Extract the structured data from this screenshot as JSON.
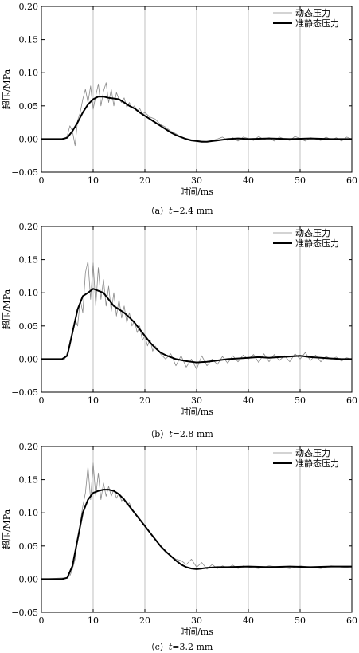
{
  "chart_data": [
    {
      "type": "line",
      "caption_prefix": "（a）",
      "caption_var": "t",
      "caption_value": "=2.4 mm",
      "xlabel": "时间/ms",
      "ylabel": "超压/MPa",
      "xlim": [
        0,
        60
      ],
      "ylim": [
        -0.05,
        0.2
      ],
      "xticks": [
        "0",
        "10",
        "20",
        "30",
        "40",
        "50",
        "60"
      ],
      "yticks": [
        "−0.05",
        "0.00",
        "0.05",
        "0.10",
        "0.15",
        "0.20"
      ],
      "grid": "vertical",
      "legend_position": "top-right",
      "series": [
        {
          "name": "动态压力",
          "x": [
            0,
            4.5,
            5,
            5.5,
            6,
            6.5,
            7,
            7.5,
            8,
            8.5,
            9,
            9.5,
            10,
            10.5,
            11,
            11.5,
            12,
            12.5,
            13,
            13.5,
            14,
            14.5,
            15,
            15.5,
            16,
            16.5,
            17,
            17.5,
            18,
            18.5,
            19,
            19.5,
            20,
            21,
            22,
            23,
            24,
            25,
            26,
            27,
            28,
            29,
            30,
            31,
            32,
            33,
            34,
            35,
            36,
            37,
            38,
            39,
            40,
            41,
            42,
            43,
            44,
            45,
            46,
            47,
            48,
            49,
            50,
            51,
            52,
            53,
            54,
            55,
            56,
            57,
            58,
            59,
            60
          ],
          "y": [
            0,
            0,
            0.005,
            0.02,
            0.012,
            -0.01,
            0.028,
            0.04,
            0.06,
            0.075,
            0.055,
            0.08,
            0.045,
            0.065,
            0.083,
            0.05,
            0.072,
            0.085,
            0.055,
            0.075,
            0.05,
            0.07,
            0.06,
            0.055,
            0.062,
            0.048,
            0.055,
            0.047,
            0.05,
            0.042,
            0.046,
            0.038,
            0.04,
            0.033,
            0.03,
            0.022,
            0.018,
            0.012,
            0.008,
            0.003,
            0.001,
            -0.001,
            -0.002,
            -0.003,
            -0.004,
            -0.002,
            0.0,
            0.003,
            -0.002,
            0.002,
            -0.003,
            0.003,
            0.001,
            -0.002,
            0.004,
            -0.001,
            0.002,
            -0.003,
            0.003,
            0.0,
            -0.002,
            0.004,
            0.001,
            -0.003,
            0.002,
            0.0,
            -0.002,
            0.003,
            -0.001,
            0.002,
            -0.003,
            0.003,
            0.0
          ]
        },
        {
          "name": "准静态压力",
          "x": [
            0,
            4,
            5,
            6,
            7,
            8,
            9,
            10,
            11,
            12,
            13,
            14,
            15,
            16,
            17,
            18,
            19,
            20,
            21,
            22,
            23,
            24,
            25,
            26,
            27,
            28,
            29,
            30,
            31,
            32,
            33,
            34,
            36,
            38,
            40,
            44,
            48,
            52,
            56,
            60
          ],
          "y": [
            0,
            0,
            0.002,
            0.012,
            0.025,
            0.04,
            0.052,
            0.06,
            0.064,
            0.064,
            0.062,
            0.061,
            0.06,
            0.055,
            0.05,
            0.046,
            0.04,
            0.035,
            0.03,
            0.025,
            0.02,
            0.015,
            0.01,
            0.006,
            0.003,
            0.0,
            -0.002,
            -0.003,
            -0.004,
            -0.004,
            -0.003,
            -0.002,
            0.0,
            0.001,
            0.0,
            0.001,
            0.0,
            0.001,
            0.0,
            0.0
          ]
        }
      ]
    },
    {
      "type": "line",
      "caption_prefix": "（b）",
      "caption_var": "t",
      "caption_value": "=2.8 mm",
      "xlabel": "时间/ms",
      "ylabel": "超压/MPa",
      "xlim": [
        0,
        60
      ],
      "ylim": [
        -0.05,
        0.2
      ],
      "xticks": [
        "0",
        "10",
        "20",
        "30",
        "40",
        "50",
        "60"
      ],
      "yticks": [
        "−0.05",
        "0.00",
        "0.05",
        "0.10",
        "0.15",
        "0.20"
      ],
      "grid": "vertical",
      "legend_position": "top-right",
      "series": [
        {
          "name": "动态压力",
          "x": [
            0,
            4.5,
            5,
            5.5,
            6,
            6.5,
            7,
            7.5,
            8,
            8.5,
            9,
            9.5,
            10,
            10.5,
            11,
            11.5,
            12,
            12.5,
            13,
            13.5,
            14,
            14.5,
            15,
            15.5,
            16,
            16.5,
            17,
            17.5,
            18,
            18.5,
            19,
            19.5,
            20,
            20.5,
            21,
            21.5,
            22,
            23,
            24,
            25,
            26,
            27,
            28,
            29,
            30,
            31,
            32,
            33,
            34,
            35,
            36,
            37,
            38,
            39,
            40,
            41,
            42,
            43,
            44,
            45,
            46,
            47,
            48,
            49,
            50,
            51,
            52,
            53,
            54,
            55,
            56,
            57,
            58,
            59,
            60
          ],
          "y": [
            0,
            0,
            0.01,
            0.02,
            0.04,
            0.06,
            0.05,
            0.09,
            0.07,
            0.13,
            0.148,
            0.09,
            0.145,
            0.08,
            0.138,
            0.09,
            0.12,
            0.08,
            0.11,
            0.072,
            0.1,
            0.065,
            0.09,
            0.062,
            0.08,
            0.055,
            0.07,
            0.05,
            0.058,
            0.04,
            0.05,
            0.028,
            0.035,
            0.02,
            0.03,
            0.012,
            0.02,
            0.008,
            0.0,
            0.008,
            -0.01,
            0.005,
            -0.012,
            0.0,
            -0.015,
            0.005,
            -0.01,
            0.0,
            -0.008,
            0.004,
            -0.006,
            0.005,
            -0.004,
            0.006,
            0.0,
            0.007,
            -0.005,
            0.008,
            -0.004,
            0.007,
            -0.002,
            0.005,
            -0.004,
            0.008,
            0.0,
            0.01,
            -0.002,
            0.006,
            -0.004,
            0.004,
            0.0,
            0.003,
            -0.003,
            0.002,
            0.0
          ]
        },
        {
          "name": "准静态压力",
          "x": [
            0,
            4,
            5,
            6,
            7,
            8,
            9,
            10,
            11,
            12,
            13,
            14,
            15,
            16,
            17,
            18,
            19,
            20,
            21,
            22,
            23,
            24,
            25,
            26,
            28,
            30,
            32,
            34,
            36,
            38,
            40,
            42,
            44,
            46,
            48,
            50,
            52,
            54,
            56,
            58,
            60
          ],
          "y": [
            0,
            0,
            0.005,
            0.04,
            0.075,
            0.095,
            0.1,
            0.106,
            0.103,
            0.1,
            0.09,
            0.08,
            0.075,
            0.07,
            0.063,
            0.055,
            0.045,
            0.035,
            0.025,
            0.017,
            0.01,
            0.006,
            0.003,
            0.0,
            -0.003,
            -0.005,
            -0.004,
            -0.002,
            0.0,
            0.001,
            0.002,
            0.003,
            0.002,
            0.003,
            0.004,
            0.005,
            0.003,
            0.002,
            0.001,
            0.0,
            0.0
          ]
        }
      ]
    },
    {
      "type": "line",
      "caption_prefix": "（c）",
      "caption_var": "t",
      "caption_value": "=3.2 mm",
      "xlabel": "时间/ms",
      "ylabel": "超压/MPa",
      "xlim": [
        0,
        60
      ],
      "ylim": [
        -0.05,
        0.2
      ],
      "xticks": [
        "0",
        "10",
        "20",
        "30",
        "40",
        "50",
        "60"
      ],
      "yticks": [
        "−0.05",
        "0.00",
        "0.05",
        "0.10",
        "0.15",
        "0.20"
      ],
      "grid": "vertical",
      "legend_position": "top-right",
      "series": [
        {
          "name": "动态压力",
          "x": [
            0,
            5,
            5.5,
            6,
            6.5,
            7,
            7.5,
            8,
            8.5,
            9,
            9.5,
            10,
            10.5,
            11,
            11.5,
            12,
            12.5,
            13,
            13.5,
            14,
            14.5,
            15,
            15.5,
            16,
            16.5,
            17,
            17.5,
            18,
            19,
            20,
            21,
            22,
            23,
            24,
            25,
            26,
            27,
            28,
            29,
            30,
            31,
            32,
            33,
            34,
            35,
            36,
            37,
            38,
            39,
            40,
            42,
            44,
            46,
            48,
            50,
            52,
            54,
            56,
            58,
            60
          ],
          "y": [
            0,
            0.002,
            0.005,
            0.015,
            0.03,
            0.06,
            0.085,
            0.11,
            0.13,
            0.17,
            0.12,
            0.175,
            0.125,
            0.16,
            0.12,
            0.145,
            0.125,
            0.14,
            0.125,
            0.135,
            0.122,
            0.13,
            0.118,
            0.122,
            0.112,
            0.115,
            0.105,
            0.1,
            0.09,
            0.08,
            0.07,
            0.06,
            0.05,
            0.042,
            0.035,
            0.03,
            0.028,
            0.022,
            0.03,
            0.018,
            0.025,
            0.015,
            0.022,
            0.016,
            0.02,
            0.017,
            0.021,
            0.016,
            0.02,
            0.018,
            0.016,
            0.02,
            0.018,
            0.016,
            0.02,
            0.018,
            0.016,
            0.02,
            0.018,
            0.017
          ]
        },
        {
          "name": "准静态压力",
          "x": [
            0,
            4,
            5,
            6,
            7,
            8,
            9,
            10,
            11,
            12,
            13,
            14,
            15,
            16,
            17,
            18,
            19,
            20,
            21,
            22,
            23,
            24,
            25,
            26,
            27,
            28,
            29,
            30,
            31,
            32,
            34,
            36,
            40,
            44,
            48,
            52,
            56,
            60
          ],
          "y": [
            0,
            0,
            0.002,
            0.02,
            0.06,
            0.1,
            0.12,
            0.13,
            0.133,
            0.135,
            0.135,
            0.133,
            0.128,
            0.12,
            0.11,
            0.1,
            0.09,
            0.08,
            0.07,
            0.06,
            0.05,
            0.042,
            0.035,
            0.028,
            0.022,
            0.018,
            0.016,
            0.015,
            0.016,
            0.017,
            0.018,
            0.018,
            0.019,
            0.018,
            0.019,
            0.018,
            0.019,
            0.019
          ]
        }
      ]
    }
  ],
  "colors": {
    "dynamic": "#8a8a8a",
    "quasi_static": "#000000",
    "grid": "#b0b0b0",
    "axis": "#000000"
  }
}
